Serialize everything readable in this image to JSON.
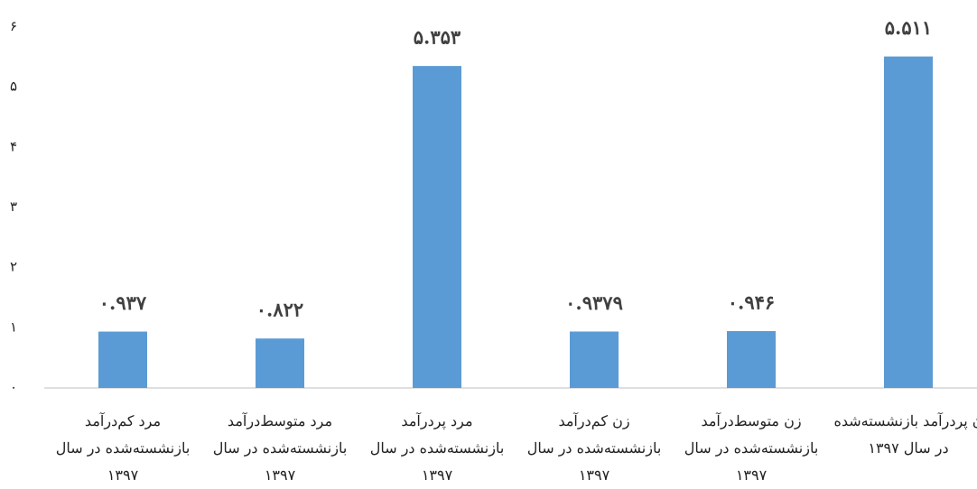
{
  "chart_data": {
    "type": "bar",
    "categories": [
      "مرد کم‌درآمد بازنشسته‌شده در سال ۱۳۹۷",
      "مرد متوسط‌درآمد بازنشسته‌شده در سال ۱۳۹۷",
      "مرد پردرآمد بازنشسته‌شده در سال ۱۳۹۷",
      "زن کم‌درآمد بازنشسته‌شده در سال ۱۳۹۷",
      "زن متوسط‌درآمد بازنشسته‌شده در سال ۱۳۹۷",
      "ن پردرآمد بازنشسته‌شده در سال ۱۳۹۷"
    ],
    "values": [
      0.937,
      0.822,
      5.353,
      0.9379,
      0.946,
      5.511
    ],
    "value_labels": [
      "۰.۹۳۷",
      "۰.۸۲۲",
      "۵.۳۵۳",
      "۰.۹۳۷۹",
      "۰.۹۴۶",
      "۵.۵۱۱"
    ],
    "color": "#5b9bd5",
    "ylim": [
      0,
      6
    ],
    "yticks": [
      {
        "value": 0,
        "label": "۰"
      },
      {
        "value": 1,
        "label": "۱"
      },
      {
        "value": 2,
        "label": "۲"
      },
      {
        "value": 3,
        "label": "۳"
      },
      {
        "value": 4,
        "label": "۴"
      },
      {
        "value": 5,
        "label": "۵"
      },
      {
        "value": 6,
        "label": "۶"
      }
    ],
    "grid": false
  }
}
